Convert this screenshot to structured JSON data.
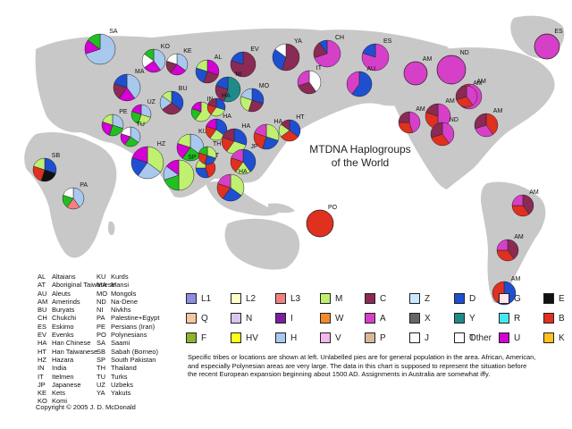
{
  "title_lines": [
    "MTDNA Haplogroups",
    "of the World"
  ],
  "abbreviations": [
    {
      "code": "AL",
      "name": "Altaians"
    },
    {
      "code": "AT",
      "name": "Aboriginal Taiwanese"
    },
    {
      "code": "AU",
      "name": "Aleuts"
    },
    {
      "code": "AM",
      "name": "Amerinds"
    },
    {
      "code": "BU",
      "name": "Buryats"
    },
    {
      "code": "CH",
      "name": "Chukchi"
    },
    {
      "code": "ES",
      "name": "Eskimo"
    },
    {
      "code": "EV",
      "name": "Evenks"
    },
    {
      "code": "HA",
      "name": "Han Chinese"
    },
    {
      "code": "HT",
      "name": "Han Taiwanese"
    },
    {
      "code": "HZ",
      "name": "Hazara"
    },
    {
      "code": "IN",
      "name": "India"
    },
    {
      "code": "IT",
      "name": "Itelmen"
    },
    {
      "code": "JP",
      "name": "Japanese"
    },
    {
      "code": "KE",
      "name": "Kets"
    },
    {
      "code": "KO",
      "name": "Komi"
    },
    {
      "code": "KU",
      "name": "Kurds"
    },
    {
      "code": "MA",
      "name": "Mansi"
    },
    {
      "code": "MO",
      "name": "Mongols"
    },
    {
      "code": "ND",
      "name": "Na-Dene"
    },
    {
      "code": "NI",
      "name": "Nivkhs"
    },
    {
      "code": "PA",
      "name": "Palestine+Egypt"
    },
    {
      "code": "PE",
      "name": "Persians (Iran)"
    },
    {
      "code": "PO",
      "name": "Polynesians"
    },
    {
      "code": "SA",
      "name": "Saami"
    },
    {
      "code": "SB",
      "name": "Sabah (Borneo)"
    },
    {
      "code": "SP",
      "name": "South Pakistan"
    },
    {
      "code": "TH",
      "name": "Thailand"
    },
    {
      "code": "TU",
      "name": "Turks"
    },
    {
      "code": "UZ",
      "name": "Uzbeks"
    },
    {
      "code": "YA",
      "name": "Yakuts"
    }
  ],
  "legend": [
    {
      "label": "L1",
      "color": "#8e8ee0"
    },
    {
      "label": "L2",
      "color": "#ffffcc"
    },
    {
      "label": "L3",
      "color": "#f28080"
    },
    {
      "label": "M",
      "color": "#bff070"
    },
    {
      "label": "C",
      "color": "#8a2a55"
    },
    {
      "label": "Z",
      "color": "#cce8ff"
    },
    {
      "label": "D",
      "color": "#1f4fd1"
    },
    {
      "label": "G",
      "color": "#ffe6ea"
    },
    {
      "label": "E",
      "color": "#111111"
    },
    {
      "label": "Q",
      "color": "#f5c6a0"
    },
    {
      "label": "N",
      "color": "#d9c6f0"
    },
    {
      "label": "I",
      "color": "#7a1fa0"
    },
    {
      "label": "W",
      "color": "#f28a2a"
    },
    {
      "label": "A",
      "color": "#d63fc8"
    },
    {
      "label": "X",
      "color": "#666666"
    },
    {
      "label": "Y",
      "color": "#1f8a8a"
    },
    {
      "label": "R",
      "color": "#44e8ee"
    },
    {
      "label": "B",
      "color": "#e03020"
    },
    {
      "label": "F",
      "color": "#8fb32a"
    },
    {
      "label": "HV",
      "color": "#ffff1a"
    },
    {
      "label": "H",
      "color": "#a8c8ee"
    },
    {
      "label": "V",
      "color": "#f5b8e8"
    },
    {
      "label": "P",
      "color": "#d8b89a"
    },
    {
      "label": "J",
      "color": "#ffffff"
    },
    {
      "label": "T",
      "color": "#20c020"
    },
    {
      "label": "U",
      "color": "#d400d4"
    },
    {
      "label": "K",
      "color": "#ffc020"
    },
    {
      "label": "Other",
      "color": "#ffffff"
    }
  ],
  "note": "Specific tribes or locations are shown at left. Unlabelled pies are for general population in the area. African, American, and especially Polynesian areas are very large. The data in this chart is supposed to represent the situation before the recent European expansion beginning about 1500 AD. Assignments in Australia are somewhat iffy.",
  "copyright": "Copyright © 2005 J. D. McDonald",
  "pies": [
    {
      "label": "SA",
      "values": [
        70,
        15,
        15
      ],
      "colors": [
        "#a8c8ee",
        "#d400d4",
        "#20c020"
      ]
    },
    {
      "label": "KO",
      "values": [
        40,
        25,
        20,
        15
      ],
      "colors": [
        "#a8c8ee",
        "#d400d4",
        "#ffffff",
        "#20c020"
      ]
    },
    {
      "label": "KE",
      "values": [
        35,
        25,
        20,
        20
      ],
      "colors": [
        "#a8c8ee",
        "#d400d4",
        "#8a2a55",
        "#ffffff"
      ]
    },
    {
      "label": "MA",
      "values": [
        40,
        20,
        20,
        20
      ],
      "colors": [
        "#a8c8ee",
        "#d400d4",
        "#8a2a55",
        "#1f4fd1"
      ]
    },
    {
      "label": "AL",
      "values": [
        30,
        25,
        25,
        20
      ],
      "colors": [
        "#d400d4",
        "#8a2a55",
        "#1f4fd1",
        "#bff070"
      ]
    },
    {
      "label": "EV",
      "values": [
        80,
        20
      ],
      "colors": [
        "#8a2a55",
        "#1f4fd1"
      ]
    },
    {
      "label": "YA",
      "values": [
        55,
        30,
        15
      ],
      "colors": [
        "#8a2a55",
        "#1f4fd1",
        "#ffffff"
      ]
    },
    {
      "label": "CH",
      "values": [
        70,
        20,
        10
      ],
      "colors": [
        "#d63fc8",
        "#8a2a55",
        "#1f4fd1"
      ]
    },
    {
      "label": "ES",
      "values": [
        80,
        20
      ],
      "colors": [
        "#d63fc8",
        "#1f4fd1"
      ]
    },
    {
      "label": "ES",
      "values": [
        100
      ],
      "colors": [
        "#d63fc8"
      ]
    },
    {
      "label": "ND",
      "values": [
        100
      ],
      "colors": [
        "#d63fc8"
      ]
    },
    {
      "label": "AU",
      "values": [
        60,
        40
      ],
      "colors": [
        "#1f4fd1",
        "#d63fc8"
      ]
    },
    {
      "label": "IT",
      "values": [
        40,
        30,
        30
      ],
      "colors": [
        "#ffffff",
        "#8a2a55",
        "#d63fc8"
      ]
    },
    {
      "label": "NI",
      "values": [
        55,
        25,
        20
      ],
      "colors": [
        "#1f8a8a",
        "#8a2a55",
        "#1f4fd1"
      ]
    },
    {
      "label": "MO",
      "values": [
        30,
        25,
        25,
        20
      ],
      "colors": [
        "#1f4fd1",
        "#8a2a55",
        "#bff070",
        "#a8c8ee"
      ]
    },
    {
      "label": "BU",
      "values": [
        35,
        30,
        20,
        15
      ],
      "colors": [
        "#1f4fd1",
        "#8a2a55",
        "#a8c8ee",
        "#bff070"
      ]
    },
    {
      "label": "UZ",
      "values": [
        30,
        25,
        25,
        20
      ],
      "colors": [
        "#a8c8ee",
        "#bff070",
        "#20c020",
        "#d400d4"
      ]
    },
    {
      "label": "PE",
      "values": [
        30,
        25,
        25,
        20
      ],
      "colors": [
        "#a8c8ee",
        "#20c020",
        "#d400d4",
        "#bff070"
      ]
    },
    {
      "label": "TU",
      "values": [
        35,
        25,
        20,
        20
      ],
      "colors": [
        "#a8c8ee",
        "#20c020",
        "#d400d4",
        "#ffffff"
      ]
    },
    {
      "label": "KU",
      "values": [
        35,
        25,
        20,
        20
      ],
      "colors": [
        "#a8c8ee",
        "#20c020",
        "#d400d4",
        "#bff070"
      ]
    },
    {
      "label": "HZ",
      "values": [
        35,
        25,
        20,
        20
      ],
      "colors": [
        "#bff070",
        "#a8c8ee",
        "#1f4fd1",
        "#d400d4"
      ]
    },
    {
      "label": "SP",
      "values": [
        50,
        20,
        15,
        15
      ],
      "colors": [
        "#bff070",
        "#20c020",
        "#a8c8ee",
        "#d400d4"
      ]
    },
    {
      "label": "IN",
      "values": [
        60,
        20,
        20
      ],
      "colors": [
        "#bff070",
        "#20c020",
        "#d400d4"
      ]
    },
    {
      "label": "HA",
      "values": [
        35,
        25,
        20,
        20
      ],
      "colors": [
        "#1f4fd1",
        "#bff070",
        "#e03020",
        "#d400d4"
      ]
    },
    {
      "label": "HA",
      "values": [
        30,
        30,
        20,
        20
      ],
      "colors": [
        "#1f4fd1",
        "#bff070",
        "#e03020",
        "#8a2a55"
      ]
    },
    {
      "label": "HA",
      "values": [
        30,
        30,
        20,
        20
      ],
      "colors": [
        "#1f4fd1",
        "#bff070",
        "#e03020",
        "#8a2a55"
      ]
    },
    {
      "label": "HA",
      "values": [
        30,
        25,
        25,
        20
      ],
      "colors": [
        "#bff070",
        "#1f4fd1",
        "#e03020",
        "#d63fc8"
      ]
    },
    {
      "label": "HT",
      "values": [
        35,
        30,
        20,
        15
      ],
      "colors": [
        "#1f4fd1",
        "#e03020",
        "#bff070",
        "#8a2a55"
      ]
    },
    {
      "label": "JP",
      "values": [
        40,
        20,
        20,
        20
      ],
      "colors": [
        "#1f4fd1",
        "#bff070",
        "#e03020",
        "#d63fc8"
      ]
    },
    {
      "label": "AT",
      "values": [
        45,
        30,
        25
      ],
      "colors": [
        "#e03020",
        "#1f4fd1",
        "#bff070"
      ]
    },
    {
      "label": "TH",
      "values": [
        30,
        25,
        25,
        20
      ],
      "colors": [
        "#bff070",
        "#1f4fd1",
        "#e03020",
        "#20c020"
      ]
    },
    {
      "label": "HA",
      "values": [
        35,
        25,
        20,
        20
      ],
      "colors": [
        "#bff070",
        "#1f4fd1",
        "#e03020",
        "#d63fc8"
      ]
    },
    {
      "label": "SB",
      "values": [
        30,
        25,
        25,
        20
      ],
      "colors": [
        "#1f4fd1",
        "#111111",
        "#e03020",
        "#bff070"
      ]
    },
    {
      "label": "PA",
      "values": [
        40,
        20,
        20,
        20
      ],
      "colors": [
        "#a8c8ee",
        "#f28080",
        "#20c020",
        "#ffffff"
      ]
    },
    {
      "label": "PO",
      "values": [
        100
      ],
      "colors": [
        "#e03020"
      ]
    },
    {
      "label": "AM",
      "values": [
        100
      ],
      "colors": [
        "#d63fc8"
      ]
    },
    {
      "label": "AM",
      "values": [
        55,
        25,
        20
      ],
      "colors": [
        "#d63fc8",
        "#1f4fd1",
        "#e03020"
      ]
    },
    {
      "label": "AM",
      "values": [
        50,
        30,
        20
      ],
      "colors": [
        "#d63fc8",
        "#e03020",
        "#8a2a55"
      ]
    },
    {
      "label": "AM",
      "values": [
        45,
        30,
        25
      ],
      "colors": [
        "#d63fc8",
        "#e03020",
        "#8a2a55"
      ]
    },
    {
      "label": "ND",
      "values": [
        40,
        30,
        30
      ],
      "colors": [
        "#d63fc8",
        "#e03020",
        "#8a2a55"
      ]
    },
    {
      "label": "AM",
      "values": [
        40,
        30,
        30
      ],
      "colors": [
        "#e03020",
        "#d63fc8",
        "#8a2a55"
      ]
    },
    {
      "label": "AM",
      "values": [
        40,
        30,
        30
      ],
      "colors": [
        "#d63fc8",
        "#e03020",
        "#8a2a55"
      ]
    },
    {
      "label": "AM",
      "values": [
        40,
        35,
        25
      ],
      "colors": [
        "#8a2a55",
        "#e03020",
        "#d63fc8"
      ]
    },
    {
      "label": "AM",
      "values": [
        40,
        35,
        25
      ],
      "colors": [
        "#8a2a55",
        "#e03020",
        "#d63fc8"
      ]
    },
    {
      "label": "AM",
      "values": [
        60,
        40
      ],
      "colors": [
        "#1f4fd1",
        "#e03020"
      ]
    }
  ]
}
